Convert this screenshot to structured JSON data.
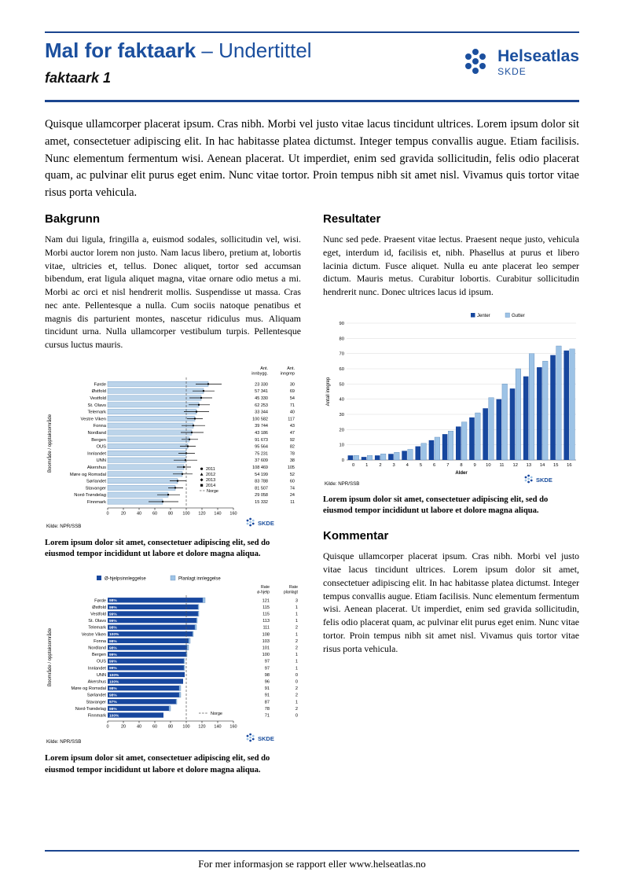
{
  "header": {
    "title_bold": "Mal for faktaark ",
    "title_rest": "– Undertittel",
    "subtitle": "faktaark 1",
    "logo_name": "Helseatlas",
    "logo_sub": "SKDE"
  },
  "intro": "Quisque ullamcorper placerat ipsum. Cras nibh. Morbi vel justo vitae lacus tincidunt ultrices. Lorem ipsum dolor sit amet, consectetuer adipiscing elit. In hac habitasse platea dictumst. Integer tempus convallis augue. Etiam facilisis. Nunc elementum fermentum wisi. Aenean placerat. Ut imperdiet, enim sed gravida sollicitudin, felis odio placerat quam, ac pulvinar elit purus eget enim. Nunc vitae tortor. Proin tempus nibh sit amet nisl. Vivamus quis tortor vitae risus porta vehicula.",
  "sections": {
    "bakgrunn": {
      "heading": "Bakgrunn",
      "body": "Nam dui ligula, fringilla a, euismod sodales, sollicitudin vel, wisi. Morbi auctor lorem non justo. Nam lacus libero, pretium at, lobortis vitae, ultricies et, tellus. Donec aliquet, tortor sed accumsan bibendum, erat ligula aliquet magna, vitae ornare odio metus a mi. Morbi ac orci et nisl hendrerit mollis. Suspendisse ut massa. Cras nec ante. Pellentesque a nulla. Cum sociis natoque penatibus et magnis dis parturient montes, nascetur ridiculus mus. Aliquam tincidunt urna. Nulla ullamcorper vestibulum turpis. Pellentesque cursus luctus mauris."
    },
    "resultater": {
      "heading": "Resultater",
      "body": "Nunc sed pede. Praesent vitae lectus. Praesent neque justo, vehicula eget, interdum id, facilisis et, nibh. Phasellus at purus et libero lacinia dictum. Fusce aliquet. Nulla eu ante placerat leo semper dictum. Mauris metus. Curabitur lobortis. Curabitur sollicitudin hendrerit nunc. Donec ultrices lacus id ipsum."
    },
    "kommentar": {
      "heading": "Kommentar",
      "body": "Quisque ullamcorper placerat ipsum. Cras nibh. Morbi vel justo vitae lacus tincidunt ultrices. Lorem ipsum dolor sit amet, consectetuer adipiscing elit. In hac habitasse platea dictumst. Integer tempus convallis augue. Etiam facilisis. Nunc elementum fermentum wisi. Aenean placerat. Ut imperdiet, enim sed gravida sollicitudin, felis odio placerat quam, ac pulvinar elit purus eget enim. Nunc vitae tortor. Proin tempus nibh sit amet nisl. Vivamus quis tortor vitae risus porta vehicula."
    }
  },
  "captions": {
    "chart1": "Lorem ipsum dolor sit amet, consectetuer adipiscing elit, sed do eiusmod tempor incididunt ut labore et dolore magna aliqua.",
    "chart2": "Lorem ipsum dolor sit amet, consectetuer adipiscing elit, sed do eiusmod tempor incididunt ut labore et dolore magna aliqua.",
    "chart3": "Lorem ipsum dolor sit amet, consectetuer adipiscing elit, sed do eiusmod tempor incididunt ut labore et dolore magna aliqua."
  },
  "footer": {
    "text": "For mer informasjon se rapport eller www.helseatlas.no"
  },
  "brand": {
    "skde": "SKDE"
  },
  "colors": {
    "brand_blue": "#1B4F9E",
    "rule_blue": "#1B458F",
    "bar_dark": "#17479E",
    "bar_light": "#9DC3E6",
    "bar_pale": "#BCD4EA",
    "bar_pale_border": "#7FA7CE",
    "grid": "#D9D9D9"
  },
  "chart_data": [
    {
      "id": "atlas-rates",
      "type": "bar",
      "orientation": "horizontal",
      "ylabel": "Boområde / opptaksområde",
      "xlim": [
        0,
        160
      ],
      "xticks": [
        0,
        20,
        40,
        60,
        80,
        100,
        120,
        140,
        160
      ],
      "norge": 100,
      "col_headers": [
        [
          "Ant.",
          "innbygg."
        ],
        [
          "Ant.",
          "inngrep"
        ]
      ],
      "legend_years": [
        "2011",
        "2012",
        "2013",
        "2014"
      ],
      "legend_line": "Norge",
      "source": "Kilde: NPR/SSB",
      "rows": [
        {
          "name": "Førde",
          "rate": 128,
          "lo": 112,
          "hi": 145,
          "innbygg": "23 330",
          "inngrep": "30"
        },
        {
          "name": "Østfold",
          "rate": 122,
          "lo": 108,
          "hi": 136,
          "innbygg": "57 341",
          "inngrep": "69"
        },
        {
          "name": "Vestfold",
          "rate": 119,
          "lo": 104,
          "hi": 133,
          "innbygg": "45 330",
          "inngrep": "54"
        },
        {
          "name": "St. Olavs",
          "rate": 116,
          "lo": 103,
          "hi": 130,
          "innbygg": "62 253",
          "inngrep": "71"
        },
        {
          "name": "Telemark",
          "rate": 113,
          "lo": 97,
          "hi": 129,
          "innbygg": "33 344",
          "inngrep": "40"
        },
        {
          "name": "Vestre Viken",
          "rate": 111,
          "lo": 101,
          "hi": 121,
          "innbygg": "100 582",
          "inngrep": "117"
        },
        {
          "name": "Fonna",
          "rate": 109,
          "lo": 94,
          "hi": 124,
          "innbygg": "39 744",
          "inngrep": "43"
        },
        {
          "name": "Nordland",
          "rate": 107,
          "lo": 93,
          "hi": 122,
          "innbygg": "43 186",
          "inngrep": "47"
        },
        {
          "name": "Bergen",
          "rate": 104,
          "lo": 94,
          "hi": 115,
          "innbygg": "91 673",
          "inngrep": "92"
        },
        {
          "name": "OUS",
          "rate": 102,
          "lo": 92,
          "hi": 112,
          "innbygg": "95 564",
          "inngrep": "82"
        },
        {
          "name": "Innlandet",
          "rate": 100,
          "lo": 90,
          "hi": 111,
          "innbygg": "75 231",
          "inngrep": "78"
        },
        {
          "name": "UNN",
          "rate": 99,
          "lo": 84,
          "hi": 114,
          "innbygg": "37 609",
          "inngrep": "38"
        },
        {
          "name": "Akershus",
          "rate": 97,
          "lo": 88,
          "hi": 106,
          "innbygg": "108 469",
          "inngrep": "105"
        },
        {
          "name": "Møre og Romsdal",
          "rate": 95,
          "lo": 83,
          "hi": 108,
          "innbygg": "54 199",
          "inngrep": "52"
        },
        {
          "name": "Sørlandet",
          "rate": 89,
          "lo": 79,
          "hi": 100,
          "innbygg": "83 788",
          "inngrep": "60"
        },
        {
          "name": "Stavanger",
          "rate": 86,
          "lo": 77,
          "hi": 96,
          "innbygg": "81 507",
          "inngrep": "74"
        },
        {
          "name": "Nord-Trøndelag",
          "rate": 77,
          "lo": 63,
          "hi": 92,
          "innbygg": "29 058",
          "inngrep": "24"
        },
        {
          "name": "Finnmark",
          "rate": 70,
          "lo": 52,
          "hi": 90,
          "innbygg": "15 332",
          "inngrep": "11"
        }
      ]
    },
    {
      "id": "admission-split",
      "type": "bar",
      "orientation": "horizontal-stacked",
      "ylabel": "Boområde / opptaksområde",
      "xlim": [
        0,
        160
      ],
      "xticks": [
        0,
        20,
        40,
        60,
        80,
        100,
        120,
        140,
        160
      ],
      "norge": 100,
      "legend": [
        "Ø-hjelpsinnleggelse",
        "Planlagt innleggelse"
      ],
      "legend_line": "Norge",
      "col_headers": [
        [
          "Rate",
          "ø-hjelp"
        ],
        [
          "Rate",
          "planlagt"
        ]
      ],
      "source": "Kilde: NPR/SSB",
      "rows": [
        {
          "name": "Førde",
          "pct": "98%",
          "rate_ohjelp": 121,
          "rate_planlagt": 3
        },
        {
          "name": "Østfold",
          "pct": "99%",
          "rate_ohjelp": 115,
          "rate_planlagt": 1
        },
        {
          "name": "Vestfold",
          "pct": "99%",
          "rate_ohjelp": 115,
          "rate_planlagt": 1
        },
        {
          "name": "St. Olavs",
          "pct": "99%",
          "rate_ohjelp": 113,
          "rate_planlagt": 1
        },
        {
          "name": "Telemark",
          "pct": "98%",
          "rate_ohjelp": 111,
          "rate_planlagt": 2
        },
        {
          "name": "Vestre Viken",
          "pct": "100%",
          "rate_ohjelp": 108,
          "rate_planlagt": 1
        },
        {
          "name": "Fonna",
          "pct": "98%",
          "rate_ohjelp": 103,
          "rate_planlagt": 2
        },
        {
          "name": "Nordland",
          "pct": "98%",
          "rate_ohjelp": 101,
          "rate_planlagt": 2
        },
        {
          "name": "Bergen",
          "pct": "99%",
          "rate_ohjelp": 100,
          "rate_planlagt": 1
        },
        {
          "name": "OUS",
          "pct": "99%",
          "rate_ohjelp": 97,
          "rate_planlagt": 1
        },
        {
          "name": "Innlandet",
          "pct": "99%",
          "rate_ohjelp": 97,
          "rate_planlagt": 1
        },
        {
          "name": "UNN",
          "pct": "100%",
          "rate_ohjelp": 98,
          "rate_planlagt": 0
        },
        {
          "name": "Akershus",
          "pct": "100%",
          "rate_ohjelp": 96,
          "rate_planlagt": 0
        },
        {
          "name": "Møre og Romsdal",
          "pct": "98%",
          "rate_ohjelp": 91,
          "rate_planlagt": 2
        },
        {
          "name": "Sørlandet",
          "pct": "98%",
          "rate_ohjelp": 91,
          "rate_planlagt": 2
        },
        {
          "name": "Stavanger",
          "pct": "97%",
          "rate_ohjelp": 87,
          "rate_planlagt": 1
        },
        {
          "name": "Nord-Trøndelag",
          "pct": "98%",
          "rate_ohjelp": 78,
          "rate_planlagt": 2
        },
        {
          "name": "Finnmark",
          "pct": "100%",
          "rate_ohjelp": 71,
          "rate_planlagt": 0
        }
      ]
    },
    {
      "id": "age-gender",
      "type": "bar",
      "orientation": "vertical-grouped",
      "xlabel": "Alder",
      "ylabel": "Antall inngrep",
      "ylim": [
        0,
        90
      ],
      "yticks": [
        0,
        10,
        20,
        30,
        40,
        50,
        60,
        70,
        80,
        90
      ],
      "categories": [
        "0",
        "1",
        "2",
        "3",
        "4",
        "5",
        "6",
        "7",
        "8",
        "9",
        "10",
        "11",
        "12",
        "13",
        "14",
        "15",
        "16"
      ],
      "series": [
        {
          "name": "Jenter",
          "values": [
            3,
            2,
            3,
            4,
            6,
            9,
            13,
            17,
            22,
            28,
            34,
            40,
            47,
            55,
            61,
            69,
            72
          ]
        },
        {
          "name": "Gutter",
          "values": [
            3,
            3,
            4,
            5,
            7,
            11,
            15,
            19,
            25,
            31,
            41,
            50,
            60,
            70,
            65,
            75,
            73
          ]
        }
      ],
      "source": "Kilde: NPR/SSB"
    }
  ]
}
